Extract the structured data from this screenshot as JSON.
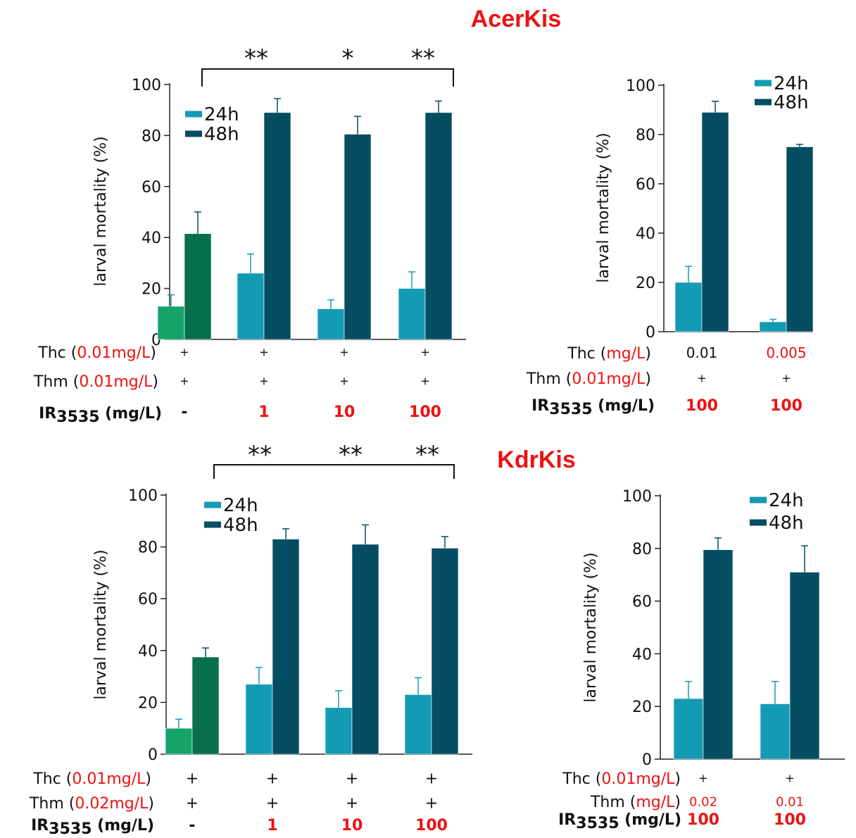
{
  "titles": {
    "acer": "AcerKis",
    "kdr": "KdrKis"
  },
  "colors": {
    "h24_light": "#149bb4",
    "h48_dark": "#054d62",
    "ctrl_24h": "#15a36a",
    "ctrl_48h": "#07704a",
    "highlight": "#ee1111"
  },
  "chart_data": [
    {
      "type": "bar",
      "id": "acer-left",
      "title": "AcerKis",
      "ylabel": "larval mortality (%)",
      "ylim": [
        0,
        100
      ],
      "yticks": [
        "0",
        "20",
        "40",
        "60",
        "80",
        "100"
      ],
      "categories": [
        "-",
        "1",
        "10",
        "100"
      ],
      "legend": [
        "24h",
        "48h"
      ],
      "series": [
        {
          "name": "24h",
          "values": [
            13,
            26,
            12,
            20
          ],
          "errors": [
            4.5,
            7.5,
            3.5,
            6.5
          ]
        },
        {
          "name": "48h",
          "values": [
            41.5,
            89,
            80.5,
            89
          ],
          "errors": [
            8.5,
            5.5,
            7,
            4.5
          ]
        }
      ],
      "significance": [
        "**",
        "*",
        "**"
      ],
      "row_labels": [
        {
          "prefix": "Thc (",
          "red": "0.01mg/L",
          "suffix": ")",
          "values": [
            "+",
            "+",
            "+",
            "+"
          ]
        },
        {
          "prefix": "Thm (",
          "red": "0.01mg/L",
          "suffix": ")",
          "values": [
            "+",
            "+",
            "+",
            "+"
          ]
        }
      ],
      "ir_label": {
        "main": "IR",
        "sub": "3535",
        "rest": " (mg/L)"
      }
    },
    {
      "type": "bar",
      "id": "acer-right",
      "ylabel": "larval mortality (%)",
      "ylim": [
        0,
        100
      ],
      "yticks": [
        "0",
        "20",
        "40",
        "60",
        "80",
        "100"
      ],
      "categories": [
        "100",
        "100"
      ],
      "legend": [
        "24h",
        "48h"
      ],
      "series": [
        {
          "name": "24h",
          "values": [
            20,
            4
          ],
          "errors": [
            6.5,
            1
          ]
        },
        {
          "name": "48h",
          "values": [
            89,
            75
          ],
          "errors": [
            4.5,
            1
          ]
        }
      ],
      "row_labels": [
        {
          "prefix": "Thc (",
          "red": "mg/L",
          "suffix": ")",
          "values": [
            "0.01",
            "0.005"
          ]
        },
        {
          "prefix": "Thm (",
          "red": "0.01mg/L",
          "suffix": ")",
          "values": [
            "+",
            "+"
          ]
        }
      ],
      "ir_label": {
        "main": "IR",
        "sub": "3535",
        "rest": " (mg/L)"
      }
    },
    {
      "type": "bar",
      "id": "kdr-left",
      "title": "KdrKis",
      "ylabel": "larval mortality (%)",
      "ylim": [
        0,
        100
      ],
      "yticks": [
        "0",
        "20",
        "40",
        "60",
        "80",
        "100"
      ],
      "categories": [
        "-",
        "1",
        "10",
        "100"
      ],
      "legend": [
        "24h",
        "48h"
      ],
      "series": [
        {
          "name": "24h",
          "values": [
            10,
            27,
            18,
            23
          ],
          "errors": [
            3.5,
            6.5,
            6.5,
            6.5
          ]
        },
        {
          "name": "48h",
          "values": [
            37.5,
            83,
            81,
            79.5
          ],
          "errors": [
            3.5,
            4,
            7.5,
            4.5
          ]
        }
      ],
      "significance": [
        "**",
        "**",
        "**"
      ],
      "row_labels": [
        {
          "prefix": "Thc (",
          "red": "0.01mg/L",
          "suffix": ")",
          "values": [
            "+",
            "+",
            "+",
            "+"
          ]
        },
        {
          "prefix": "Thm (",
          "red": "0.02mg/L",
          "suffix": ")",
          "values": [
            "+",
            "+",
            "+",
            "+"
          ]
        }
      ],
      "ir_label": {
        "main": "IR",
        "sub": "3535",
        "rest": " (mg/L)"
      }
    },
    {
      "type": "bar",
      "id": "kdr-right",
      "ylabel": "larval mortality (%)",
      "ylim": [
        0,
        100
      ],
      "yticks": [
        "0",
        "20",
        "40",
        "60",
        "80",
        "100"
      ],
      "categories": [
        "100",
        "100"
      ],
      "legend": [
        "24h",
        "48h"
      ],
      "series": [
        {
          "name": "24h",
          "values": [
            23,
            21
          ],
          "errors": [
            6.5,
            8.5
          ]
        },
        {
          "name": "48h",
          "values": [
            79.5,
            71
          ],
          "errors": [
            4.5,
            10
          ]
        }
      ],
      "row_labels": [
        {
          "prefix": "Thc (",
          "red": "0.01mg/L",
          "suffix": ")",
          "values": [
            "+",
            "+"
          ]
        },
        {
          "prefix": "Thm (",
          "red": "mg/L",
          "suffix": ")",
          "values": [
            "0.02",
            "0.01"
          ]
        }
      ],
      "ir_label": {
        "main": "IR",
        "sub": "3535",
        "rest": " (mg/L)"
      }
    }
  ]
}
